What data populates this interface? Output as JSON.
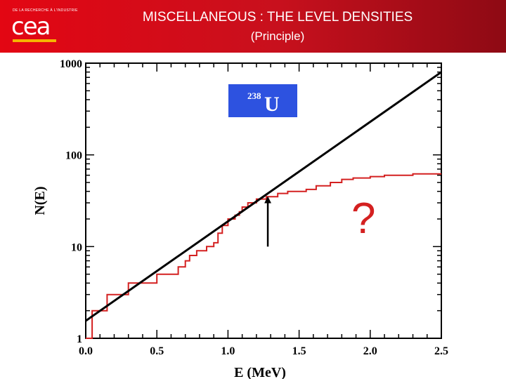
{
  "header": {
    "title": "MISCELLANEOUS : THE LEVEL DENSITIES",
    "subtitle": "(Principle)",
    "logo_tagline": "DE LA RECHERCHE À L'INDUSTRIE",
    "logo_text": "cea"
  },
  "colors": {
    "header_red": "#e30613",
    "series_red": "#d42020",
    "nucleus_box": "#2d52e0"
  },
  "annotations": {
    "nucleus_mass": "238",
    "nucleus_symbol": "U",
    "question_mark": "?"
  },
  "chart_data": {
    "type": "line",
    "xlabel": "E (MeV)",
    "ylabel": "N(E)",
    "xlim": [
      0,
      2.5
    ],
    "ylim": [
      1,
      1000
    ],
    "y_scale": "log",
    "x_ticks": [
      "0.0",
      "0.5",
      "1.0",
      "1.5",
      "2.0",
      "2.5"
    ],
    "y_ticks": [
      "1",
      "10",
      "100",
      "1000"
    ],
    "grid": false,
    "series": [
      {
        "name": "",
        "style": "step",
        "color": "#d42020",
        "points": [
          [
            0.0,
            1
          ],
          [
            0.045,
            1
          ],
          [
            0.045,
            2
          ],
          [
            0.15,
            2
          ],
          [
            0.15,
            3
          ],
          [
            0.3,
            3
          ],
          [
            0.3,
            4
          ],
          [
            0.5,
            4
          ],
          [
            0.5,
            5
          ],
          [
            0.65,
            5
          ],
          [
            0.65,
            6
          ],
          [
            0.7,
            6
          ],
          [
            0.7,
            7
          ],
          [
            0.73,
            7
          ],
          [
            0.73,
            8
          ],
          [
            0.78,
            8
          ],
          [
            0.78,
            9
          ],
          [
            0.85,
            9
          ],
          [
            0.85,
            10
          ],
          [
            0.9,
            10
          ],
          [
            0.9,
            11
          ],
          [
            0.93,
            11
          ],
          [
            0.93,
            14
          ],
          [
            0.96,
            14
          ],
          [
            0.96,
            17
          ],
          [
            1.0,
            17
          ],
          [
            1.0,
            20
          ],
          [
            1.05,
            20
          ],
          [
            1.05,
            22
          ],
          [
            1.08,
            22
          ],
          [
            1.08,
            24
          ],
          [
            1.1,
            24
          ],
          [
            1.1,
            27
          ],
          [
            1.14,
            27
          ],
          [
            1.14,
            30
          ],
          [
            1.2,
            30
          ],
          [
            1.2,
            33
          ],
          [
            1.27,
            33
          ],
          [
            1.27,
            35
          ],
          [
            1.35,
            35
          ],
          [
            1.35,
            38
          ],
          [
            1.42,
            38
          ],
          [
            1.42,
            40
          ],
          [
            1.55,
            40
          ],
          [
            1.55,
            42
          ],
          [
            1.62,
            42
          ],
          [
            1.62,
            46
          ],
          [
            1.72,
            46
          ],
          [
            1.72,
            50
          ],
          [
            1.8,
            50
          ],
          [
            1.8,
            54
          ],
          [
            1.88,
            54
          ],
          [
            1.88,
            56
          ],
          [
            2.0,
            56
          ],
          [
            2.0,
            58
          ],
          [
            2.1,
            58
          ],
          [
            2.1,
            60
          ],
          [
            2.3,
            60
          ],
          [
            2.3,
            62
          ],
          [
            2.5,
            62
          ]
        ]
      },
      {
        "name": "",
        "style": "line",
        "color": "#000000",
        "points": [
          [
            0.0,
            1.55
          ],
          [
            2.5,
            800
          ]
        ]
      }
    ],
    "arrow": {
      "x": 1.28,
      "y_from": 10,
      "y_to": 36
    }
  }
}
